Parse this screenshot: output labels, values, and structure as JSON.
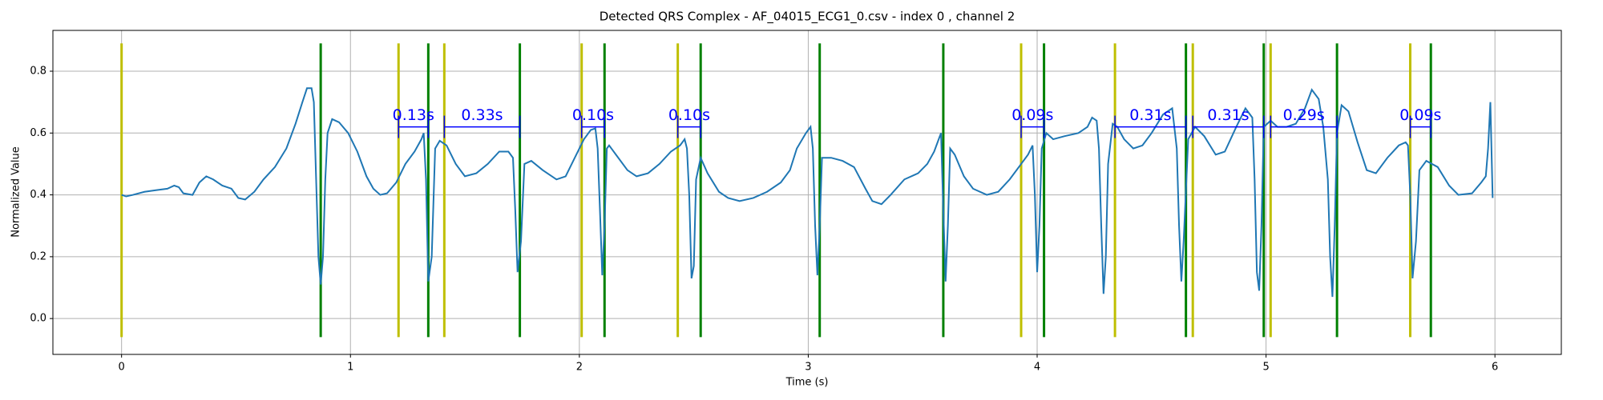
{
  "chart_data": {
    "type": "line",
    "title": "Detected QRS Complex - AF_04015_ECG1_0.csv - index 0 , channel 2",
    "xlabel": "Time (s)",
    "ylabel": "Normalized Value",
    "xlim": [
      -0.3,
      6.29
    ],
    "ylim": [
      -0.116,
      0.932
    ],
    "xticks": [
      0,
      1,
      2,
      3,
      4,
      5,
      6
    ],
    "yticks": [
      {
        "value": 0,
        "label": "0.0"
      },
      0.2,
      0.4,
      0.6,
      0.8
    ],
    "grid": true,
    "x": [
      0,
      0.02,
      0.05,
      0.1,
      0.15,
      0.2,
      0.23,
      0.25,
      0.27,
      0.31,
      0.34,
      0.37,
      0.4,
      0.44,
      0.48,
      0.51,
      0.54,
      0.58,
      0.62,
      0.67,
      0.72,
      0.76,
      0.79,
      0.81,
      0.83,
      0.84,
      0.85,
      0.86,
      0.87,
      0.88,
      0.89,
      0.9,
      0.92,
      0.95,
      0.99,
      1.03,
      1.07,
      1.1,
      1.13,
      1.16,
      1.2,
      1.24,
      1.28,
      1.31,
      1.32,
      1.33,
      1.34,
      1.355,
      1.37,
      1.39,
      1.42,
      1.46,
      1.5,
      1.55,
      1.6,
      1.65,
      1.69,
      1.71,
      1.72,
      1.73,
      1.745,
      1.76,
      1.79,
      1.84,
      1.9,
      1.94,
      1.98,
      2.02,
      2.05,
      2.07,
      2.08,
      2.09,
      2.1,
      2.11,
      2.12,
      2.13,
      2.16,
      2.21,
      2.25,
      2.3,
      2.35,
      2.4,
      2.44,
      2.46,
      2.47,
      2.48,
      2.49,
      2.5,
      2.51,
      2.53,
      2.56,
      2.61,
      2.65,
      2.7,
      2.76,
      2.82,
      2.88,
      2.92,
      2.95,
      2.99,
      3.01,
      3.02,
      3.03,
      3.04,
      3.05,
      3.06,
      3.1,
      3.15,
      3.2,
      3.25,
      3.28,
      3.32,
      3.36,
      3.42,
      3.48,
      3.52,
      3.55,
      3.57,
      3.58,
      3.59,
      3.6,
      3.61,
      3.62,
      3.64,
      3.68,
      3.72,
      3.78,
      3.83,
      3.88,
      3.93,
      3.96,
      3.98,
      3.99,
      4.0,
      4.01,
      4.02,
      4.04,
      4.07,
      4.12,
      4.18,
      4.22,
      4.24,
      4.26,
      4.27,
      4.28,
      4.29,
      4.3,
      4.31,
      4.33,
      4.35,
      4.38,
      4.42,
      4.46,
      4.5,
      4.55,
      4.59,
      4.61,
      4.62,
      4.63,
      4.64,
      4.66,
      4.69,
      4.73,
      4.78,
      4.82,
      4.87,
      4.91,
      4.94,
      4.95,
      4.96,
      4.97,
      4.98,
      4.99,
      5.02,
      5.05,
      5.09,
      5.13,
      5.17,
      5.2,
      5.23,
      5.25,
      5.27,
      5.28,
      5.29,
      5.3,
      5.31,
      5.33,
      5.36,
      5.4,
      5.44,
      5.48,
      5.53,
      5.58,
      5.61,
      5.62,
      5.63,
      5.64,
      5.655,
      5.67,
      5.7,
      5.75,
      5.8,
      5.84,
      5.9,
      5.94,
      5.96,
      5.97,
      5.98,
      5.99
    ],
    "series": [
      {
        "color": "#1f77b4",
        "values": [
          0.4,
          0.395,
          0.4,
          0.41,
          0.415,
          0.42,
          0.43,
          0.425,
          0.405,
          0.4,
          0.44,
          0.46,
          0.45,
          0.43,
          0.42,
          0.39,
          0.385,
          0.41,
          0.45,
          0.49,
          0.55,
          0.63,
          0.7,
          0.745,
          0.745,
          0.7,
          0.45,
          0.2,
          0.11,
          0.2,
          0.45,
          0.6,
          0.645,
          0.635,
          0.6,
          0.54,
          0.46,
          0.42,
          0.4,
          0.405,
          0.44,
          0.5,
          0.54,
          0.58,
          0.6,
          0.45,
          0.12,
          0.2,
          0.55,
          0.575,
          0.56,
          0.5,
          0.46,
          0.47,
          0.5,
          0.54,
          0.54,
          0.52,
          0.35,
          0.15,
          0.25,
          0.5,
          0.51,
          0.48,
          0.45,
          0.46,
          0.52,
          0.58,
          0.61,
          0.615,
          0.55,
          0.35,
          0.14,
          0.3,
          0.55,
          0.56,
          0.53,
          0.48,
          0.46,
          0.47,
          0.5,
          0.54,
          0.56,
          0.58,
          0.55,
          0.4,
          0.13,
          0.17,
          0.45,
          0.52,
          0.47,
          0.41,
          0.39,
          0.38,
          0.39,
          0.41,
          0.44,
          0.48,
          0.55,
          0.6,
          0.62,
          0.55,
          0.3,
          0.14,
          0.3,
          0.52,
          0.52,
          0.51,
          0.49,
          0.42,
          0.38,
          0.37,
          0.4,
          0.45,
          0.47,
          0.5,
          0.54,
          0.58,
          0.6,
          0.35,
          0.12,
          0.3,
          0.55,
          0.53,
          0.46,
          0.42,
          0.4,
          0.41,
          0.45,
          0.5,
          0.53,
          0.56,
          0.4,
          0.15,
          0.3,
          0.55,
          0.6,
          0.58,
          0.59,
          0.6,
          0.62,
          0.65,
          0.64,
          0.55,
          0.3,
          0.08,
          0.2,
          0.5,
          0.63,
          0.62,
          0.58,
          0.55,
          0.56,
          0.6,
          0.66,
          0.68,
          0.55,
          0.3,
          0.12,
          0.25,
          0.58,
          0.62,
          0.59,
          0.53,
          0.54,
          0.62,
          0.68,
          0.65,
          0.45,
          0.15,
          0.09,
          0.3,
          0.62,
          0.64,
          0.62,
          0.62,
          0.63,
          0.68,
          0.74,
          0.71,
          0.62,
          0.45,
          0.2,
          0.07,
          0.3,
          0.6,
          0.69,
          0.67,
          0.57,
          0.48,
          0.47,
          0.52,
          0.56,
          0.57,
          0.56,
          0.4,
          0.13,
          0.25,
          0.48,
          0.51,
          0.49,
          0.43,
          0.4,
          0.405,
          0.44,
          0.46,
          0.55,
          0.7,
          0.39
        ]
      }
    ],
    "vline_range": [
      -0.06,
      0.89
    ],
    "vlines": [
      {
        "color": "#bfbf00",
        "x": [
          0,
          1.21,
          1.41,
          2.01,
          2.43,
          3.93,
          4.34,
          4.68,
          5.02,
          5.63
        ]
      },
      {
        "color": "#008000",
        "x": [
          0.87,
          1.34,
          1.74,
          2.11,
          2.53,
          3.05,
          3.59,
          4.03,
          4.65,
          4.99,
          5.31,
          5.72
        ]
      }
    ],
    "interval_color": "#0000ff",
    "intervals": [
      {
        "x": [
          1.21,
          1.34
        ],
        "y": 0.62,
        "label": "0.13s"
      },
      {
        "x": [
          1.41,
          1.74
        ],
        "y": 0.62,
        "label": "0.33s"
      },
      {
        "x": [
          2.01,
          2.11
        ],
        "y": 0.62,
        "label": "0.10s"
      },
      {
        "x": [
          2.43,
          2.53
        ],
        "y": 0.62,
        "label": "0.10s"
      },
      {
        "x": [
          3.93,
          4.03
        ],
        "y": 0.62,
        "label": "0.09s"
      },
      {
        "x": [
          4.34,
          4.65
        ],
        "y": 0.62,
        "label": "0.31s"
      },
      {
        "x": [
          4.68,
          4.99
        ],
        "y": 0.62,
        "label": "0.31s"
      },
      {
        "x": [
          5.02,
          5.31
        ],
        "y": 0.62,
        "label": "0.29s"
      },
      {
        "x": [
          5.63,
          5.72
        ],
        "y": 0.62,
        "label": "0.09s"
      }
    ]
  }
}
